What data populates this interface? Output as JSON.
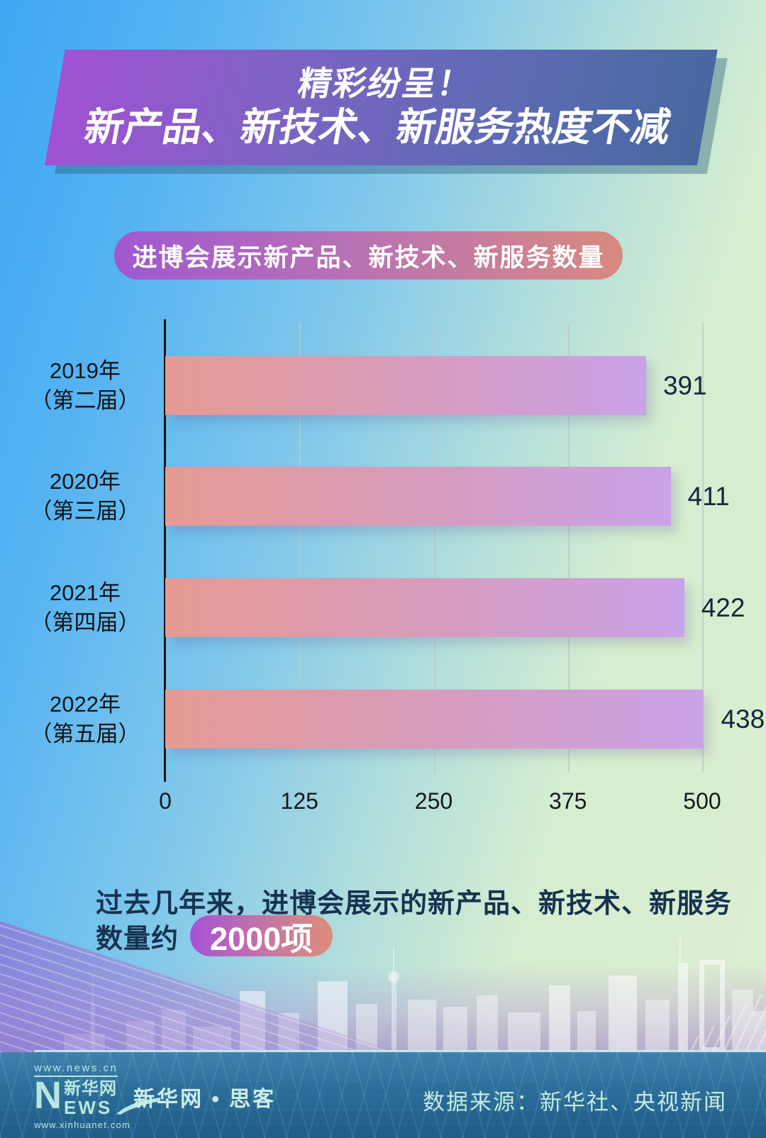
{
  "banner": {
    "line1": "精彩纷呈！",
    "line2": "新产品、新技术、新服务热度不减"
  },
  "chart_title": "进博会展示新产品、新技术、新服务数量",
  "chart_data": {
    "type": "bar",
    "orientation": "horizontal",
    "title": "进博会展示新产品、新技术、新服务数量",
    "categories": [
      {
        "year": "2019年",
        "session": "（第二届）"
      },
      {
        "year": "2020年",
        "session": "（第三届）"
      },
      {
        "year": "2021年",
        "session": "（第四届）"
      },
      {
        "year": "2022年",
        "session": "（第五届）"
      }
    ],
    "values": [
      391,
      411,
      422,
      438
    ],
    "xticks": [
      "0",
      "125",
      "250",
      "375",
      "500"
    ],
    "xlim": [
      0,
      500
    ],
    "grid": true,
    "legend": "none",
    "bar_gradient": [
      "#e59a92",
      "#c9a2e8"
    ],
    "value_label_color": "#14273c"
  },
  "note": {
    "line1": "过去几年来，进博会展示的新产品、新技术、新服务",
    "line2_prefix": "数量约",
    "highlight": "2000项"
  },
  "footer": {
    "url_top": "www.news.cn",
    "url_bottom": "www.xinhuanet.com",
    "logo_n": "N",
    "logo_cn": "新华网",
    "logo_ews": "EWS",
    "brand": "新华网 • 思客",
    "source": "数据来源：新华社、央视新闻"
  },
  "colors": {
    "banner_gradient": [
      "#a052d2",
      "#47689f"
    ],
    "pill_gradient": [
      "#9f58d2",
      "#d88a7e"
    ],
    "footer_bg": [
      "#3f81ac",
      "#205c87"
    ]
  }
}
